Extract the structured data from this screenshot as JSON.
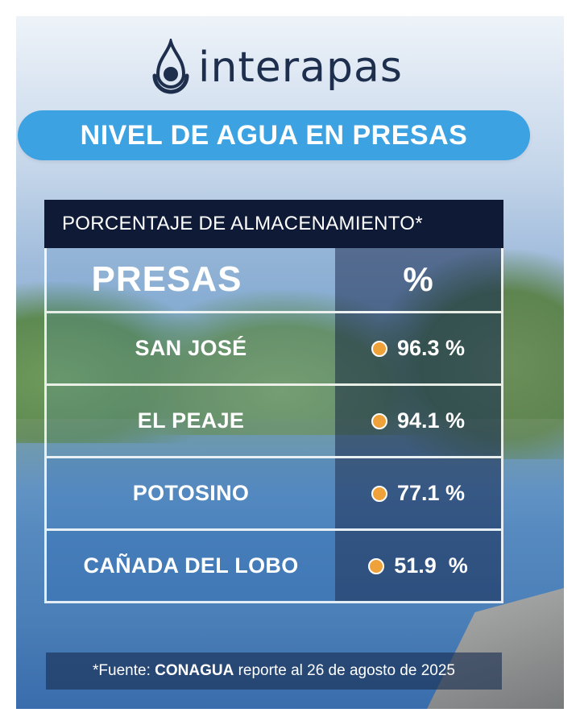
{
  "brand": {
    "name": "interapas"
  },
  "title": "NIVEL DE AGUA EN PRESAS",
  "table": {
    "caption": "PORCENTAJE DE ALMACENAMIENTO*",
    "column_headers": [
      "PRESAS",
      "%"
    ],
    "rows": [
      {
        "name": "SAN JOSÉ",
        "value": "96.3 %",
        "indicator_color": "#f0a23a"
      },
      {
        "name": "EL PEAJE",
        "value": "94.1 %",
        "indicator_color": "#f0a23a"
      },
      {
        "name": "POTOSINO",
        "value": "77.1 %",
        "indicator_color": "#f0a23a"
      },
      {
        "name": "CAÑADA DEL LOBO",
        "value": "51.9  %",
        "indicator_color": "#f0a23a"
      }
    ]
  },
  "footer": {
    "prefix": "*Fuente: ",
    "source": "CONAGUA",
    "suffix": " reporte al 26 de agosto de 2025"
  },
  "colors": {
    "accent": "#3da2e2",
    "header_dark": "#0f1b36",
    "indicator": "#f0a23a",
    "logo": "#1e2f4d"
  }
}
